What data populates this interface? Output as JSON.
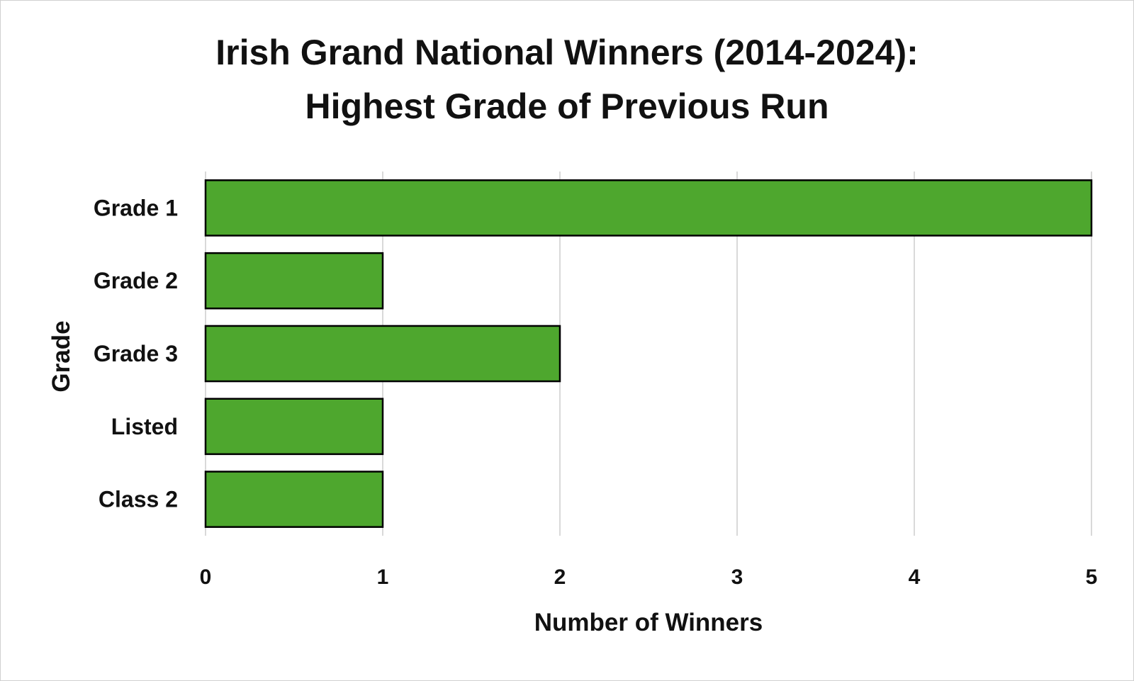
{
  "chart_data": {
    "type": "bar",
    "orientation": "horizontal",
    "title_lines": [
      "Irish Grand National Winners (2014-2024):",
      "Highest Grade of Previous Run"
    ],
    "xlabel": "Number of Winners",
    "ylabel": "Grade",
    "categories": [
      "Grade 1",
      "Grade 2",
      "Grade 3",
      "Listed",
      "Class 2"
    ],
    "values": [
      5,
      1,
      2,
      1,
      1
    ],
    "xlim": [
      0,
      5
    ],
    "xticks": [
      "0",
      "1",
      "2",
      "3",
      "4",
      "5"
    ],
    "grid": "vertical",
    "legend": "none",
    "colors": {
      "bar_fill": "#4ea72e",
      "bar_stroke": "#000000",
      "grid": "#d9d9d9",
      "text": "#111111"
    }
  }
}
